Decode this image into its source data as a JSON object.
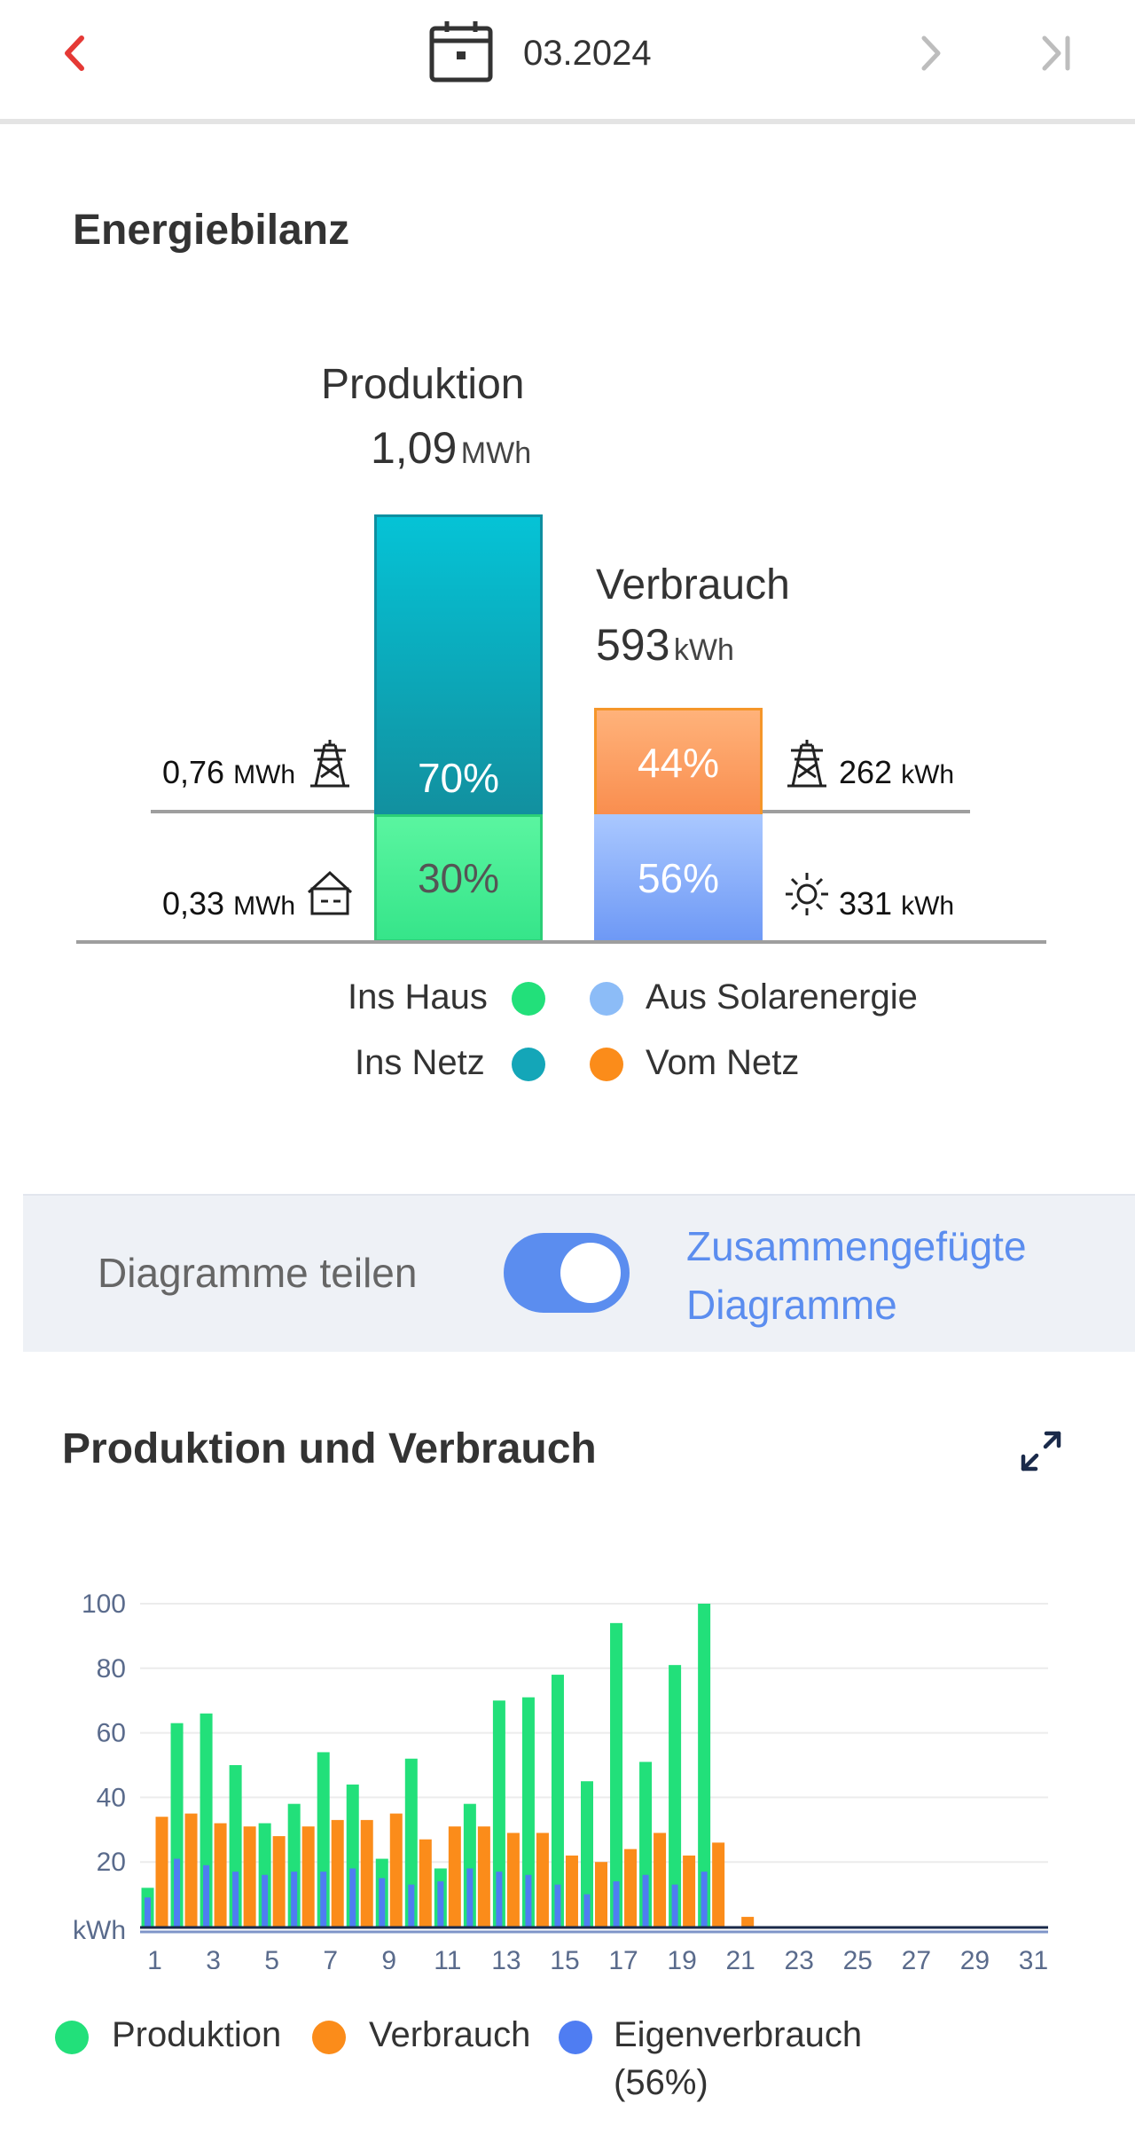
{
  "header": {
    "date": "03.2024",
    "back_icon": "chevron-left-icon",
    "calendar_icon": "calendar-icon",
    "next_icon": "chevron-right-icon",
    "last_icon": "skip-to-end-icon",
    "back_color": "#e53935"
  },
  "bilanz": {
    "title": "Energiebilanz",
    "produktion": {
      "label": "Produktion",
      "value": "1,09",
      "unit": "MWh"
    },
    "verbrauch": {
      "label": "Verbrauch",
      "value": "593",
      "unit": "kWh"
    },
    "prod_netz_pct": "70%",
    "prod_haus_pct": "30%",
    "verb_netz_pct": "44%",
    "verb_solar_pct": "56%",
    "left_top": {
      "value": "0,76",
      "unit": "MWh",
      "icon": "power-tower-icon"
    },
    "left_bottom": {
      "value": "0,33",
      "unit": "MWh",
      "icon": "house-icon"
    },
    "right_top": {
      "value": "262",
      "unit": "kWh",
      "icon": "power-tower-icon"
    },
    "right_bottom": {
      "value": "331",
      "unit": "kWh",
      "icon": "sun-icon"
    },
    "legend": {
      "ins_haus": "Ins Haus",
      "ins_netz": "Ins Netz",
      "aus_solar": "Aus Solarenergie",
      "vom_netz": "Vom Netz"
    },
    "colors": {
      "ins_haus": "#22e07a",
      "ins_netz": "#14a6b8",
      "aus_solar": "#8cbcf7",
      "vom_netz": "#fb8c1a"
    }
  },
  "toggle": {
    "left_label": "Diagramme teilen",
    "right_label_1": "Zusammengefügte",
    "right_label_2": "Diagramme",
    "state": "on"
  },
  "chart_section": {
    "title": "Produktion und Verbrauch",
    "expand_icon": "expand-icon",
    "legend": {
      "produktion": "Produktion",
      "verbrauch": "Verbrauch",
      "eigen_1": "Eigenverbrauch",
      "eigen_2": "(56%)"
    }
  },
  "chart_data": {
    "type": "bar",
    "ylabel": "kWh",
    "ylim": [
      0,
      100
    ],
    "yticks": [
      20,
      40,
      60,
      80,
      100
    ],
    "xticks": [
      1,
      3,
      5,
      7,
      9,
      11,
      13,
      15,
      17,
      19,
      21,
      23,
      25,
      27,
      29,
      31
    ],
    "categories": [
      1,
      2,
      3,
      4,
      5,
      6,
      7,
      8,
      9,
      10,
      11,
      12,
      13,
      14,
      15,
      16,
      17,
      18,
      19,
      20,
      21,
      22,
      23,
      24,
      25,
      26,
      27,
      28,
      29,
      30,
      31
    ],
    "grid": true,
    "series": [
      {
        "name": "Produktion",
        "color": "#22e07a",
        "values": [
          12,
          63,
          66,
          50,
          32,
          38,
          54,
          44,
          21,
          52,
          18,
          38,
          70,
          71,
          78,
          45,
          94,
          51,
          81,
          100,
          0,
          0,
          0,
          0,
          0,
          0,
          0,
          0,
          0,
          0,
          0
        ]
      },
      {
        "name": "Verbrauch",
        "color": "#fb8c1a",
        "values": [
          34,
          35,
          32,
          31,
          28,
          31,
          33,
          33,
          35,
          27,
          31,
          31,
          29,
          29,
          22,
          20,
          24,
          29,
          22,
          26,
          3,
          0,
          0,
          0,
          0,
          0,
          0,
          0,
          0,
          0,
          0
        ]
      },
      {
        "name": "Eigenverbrauch",
        "color": "#4f7df2",
        "values": [
          9,
          21,
          19,
          17,
          16,
          17,
          17,
          18,
          15,
          13,
          14,
          18,
          17,
          16,
          13,
          10,
          14,
          16,
          13,
          17,
          0,
          0,
          0,
          0,
          0,
          0,
          0,
          0,
          0,
          0,
          0
        ]
      }
    ]
  }
}
